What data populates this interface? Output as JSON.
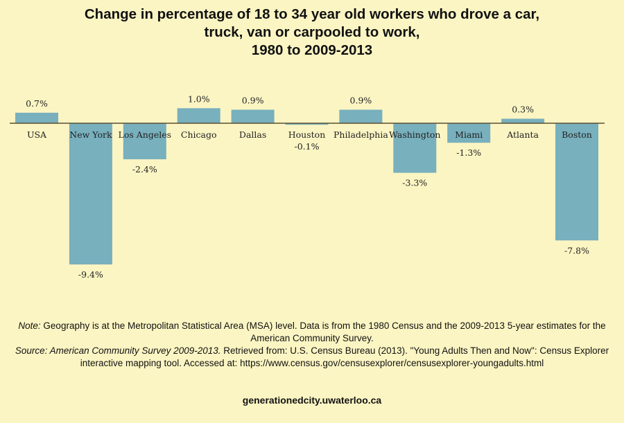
{
  "chart_data": {
    "type": "bar",
    "title_lines": [
      "Change in percentage of 18 to 34 year old workers who drove a car,",
      "truck, van or carpooled to work,",
      "1980 to 2009-2013"
    ],
    "categories": [
      "USA",
      "New York",
      "Los Angeles",
      "Chicago",
      "Dallas",
      "Houston",
      "Philadelphia",
      "Washington",
      "Miami",
      "Atlanta",
      "Boston"
    ],
    "values": [
      0.7,
      -9.4,
      -2.4,
      1.0,
      0.9,
      -0.1,
      0.9,
      -3.3,
      -1.3,
      0.3,
      -7.8
    ],
    "data_labels": [
      "0.7%",
      "-9.4%",
      "-2.4%",
      "1.0%",
      "0.9%",
      "-0.1%",
      "0.9%",
      "-3.3%",
      "-1.3%",
      "0.3%",
      "-7.8%"
    ],
    "xlabel": "",
    "ylabel": "",
    "ylim": [
      -10,
      1.5
    ],
    "grid": false,
    "bar_color": "#78b0bd",
    "axis_color": "#5a5030"
  },
  "notes": {
    "note_label": "Note:",
    "note_text": " Geography is at the Metropolitan Statistical Area (MSA) level. Data is from the 1980 Census and the 2009-2013 5-year estimates for the American Community Survey.",
    "source_label": "Source: American Community Survey 2009-2013.",
    "source_text": " Retrieved from: U.S. Census Bureau (2013). \"Young Adults Then and Now\": Census Explorer interactive mapping tool.  Accessed at: https://www.census.gov/censusexplorer/censusexplorer-youngadults.html"
  },
  "site": "generationedcity.uwaterloo.ca"
}
